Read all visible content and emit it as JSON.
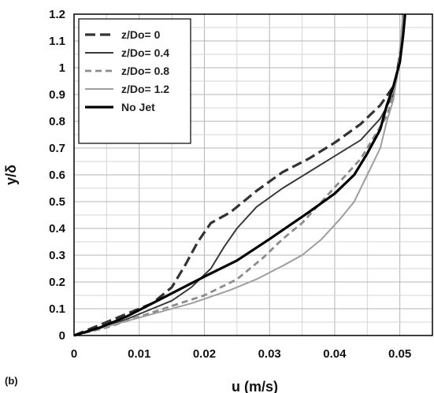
{
  "panel_label": "(b)",
  "chart_data": {
    "type": "line",
    "xlabel": "u (m/s)",
    "ylabel": "y/δ",
    "xlim": [
      0,
      0.055
    ],
    "ylim": [
      0,
      1.2
    ],
    "x_ticks": [
      0,
      0.01,
      0.02,
      0.03,
      0.04,
      0.05
    ],
    "x_tick_labels": [
      "0",
      "0.01",
      "0.02",
      "0.03",
      "0.04",
      "0.05"
    ],
    "y_ticks": [
      0,
      0.1,
      0.2,
      0.3,
      0.4,
      0.5,
      0.6,
      0.7,
      0.8,
      0.9,
      1,
      1.1,
      1.2
    ],
    "y_tick_labels": [
      "0",
      "0.1",
      "0.2",
      "0.3",
      "0.4",
      "0.5",
      "0.6",
      "0.7",
      "0.8",
      "0.9",
      "1",
      "1.1",
      "1.2"
    ],
    "grid": true,
    "legend_position": "top-left",
    "series": [
      {
        "name": "z/Do= 0",
        "color": "#333333",
        "dash": "long-dash",
        "points": [
          [
            0,
            0
          ],
          [
            0.004,
            0.04
          ],
          [
            0.008,
            0.08
          ],
          [
            0.012,
            0.12
          ],
          [
            0.015,
            0.18
          ],
          [
            0.017,
            0.26
          ],
          [
            0.019,
            0.35
          ],
          [
            0.021,
            0.42
          ],
          [
            0.024,
            0.46
          ],
          [
            0.028,
            0.54
          ],
          [
            0.032,
            0.61
          ],
          [
            0.036,
            0.66
          ],
          [
            0.04,
            0.72
          ],
          [
            0.044,
            0.79
          ],
          [
            0.047,
            0.86
          ],
          [
            0.049,
            0.93
          ],
          [
            0.0495,
            0.97
          ],
          [
            0.05,
            1.05
          ],
          [
            0.0505,
            1.15
          ],
          [
            0.0505,
            1.2
          ]
        ]
      },
      {
        "name": "z/Do= 0.4",
        "color": "#3a3a3a",
        "dash": "solid",
        "points": [
          [
            0,
            0
          ],
          [
            0.004,
            0.03
          ],
          [
            0.008,
            0.06
          ],
          [
            0.012,
            0.1
          ],
          [
            0.015,
            0.13
          ],
          [
            0.018,
            0.18
          ],
          [
            0.021,
            0.25
          ],
          [
            0.023,
            0.33
          ],
          [
            0.025,
            0.4
          ],
          [
            0.028,
            0.48
          ],
          [
            0.032,
            0.55
          ],
          [
            0.036,
            0.61
          ],
          [
            0.04,
            0.67
          ],
          [
            0.044,
            0.73
          ],
          [
            0.047,
            0.81
          ],
          [
            0.049,
            0.9
          ],
          [
            0.0495,
            0.96
          ],
          [
            0.05,
            1.05
          ],
          [
            0.0505,
            1.2
          ]
        ]
      },
      {
        "name": "z/Do= 0.8",
        "color": "#8c8c8c",
        "dash": "dash",
        "points": [
          [
            0,
            0
          ],
          [
            0.005,
            0.03
          ],
          [
            0.01,
            0.07
          ],
          [
            0.015,
            0.11
          ],
          [
            0.02,
            0.15
          ],
          [
            0.025,
            0.21
          ],
          [
            0.029,
            0.29
          ],
          [
            0.032,
            0.36
          ],
          [
            0.035,
            0.42
          ],
          [
            0.038,
            0.5
          ],
          [
            0.041,
            0.58
          ],
          [
            0.044,
            0.66
          ],
          [
            0.046,
            0.74
          ],
          [
            0.048,
            0.82
          ],
          [
            0.049,
            0.9
          ],
          [
            0.0495,
            0.96
          ],
          [
            0.05,
            1.05
          ],
          [
            0.0505,
            1.2
          ]
        ]
      },
      {
        "name": "z/Do= 1.2",
        "color": "#9e9e9e",
        "dash": "solid",
        "points": [
          [
            0,
            0
          ],
          [
            0.006,
            0.04
          ],
          [
            0.012,
            0.08
          ],
          [
            0.018,
            0.12
          ],
          [
            0.024,
            0.17
          ],
          [
            0.028,
            0.21
          ],
          [
            0.032,
            0.26
          ],
          [
            0.035,
            0.3
          ],
          [
            0.038,
            0.36
          ],
          [
            0.041,
            0.44
          ],
          [
            0.043,
            0.5
          ],
          [
            0.045,
            0.6
          ],
          [
            0.047,
            0.7
          ],
          [
            0.048,
            0.8
          ],
          [
            0.049,
            0.88
          ],
          [
            0.0495,
            0.96
          ],
          [
            0.05,
            1.05
          ],
          [
            0.0505,
            1.2
          ]
        ]
      },
      {
        "name": "No Jet",
        "color": "#000000",
        "dash": "solid-thick",
        "points": [
          [
            0,
            0
          ],
          [
            0.004,
            0.03
          ],
          [
            0.008,
            0.07
          ],
          [
            0.012,
            0.12
          ],
          [
            0.016,
            0.17
          ],
          [
            0.02,
            0.22
          ],
          [
            0.025,
            0.28
          ],
          [
            0.03,
            0.36
          ],
          [
            0.033,
            0.41
          ],
          [
            0.036,
            0.46
          ],
          [
            0.04,
            0.53
          ],
          [
            0.043,
            0.6
          ],
          [
            0.045,
            0.68
          ],
          [
            0.047,
            0.77
          ],
          [
            0.048,
            0.86
          ],
          [
            0.049,
            0.93
          ],
          [
            0.05,
            1.02
          ],
          [
            0.0505,
            1.12
          ],
          [
            0.0508,
            1.2
          ]
        ]
      }
    ]
  }
}
